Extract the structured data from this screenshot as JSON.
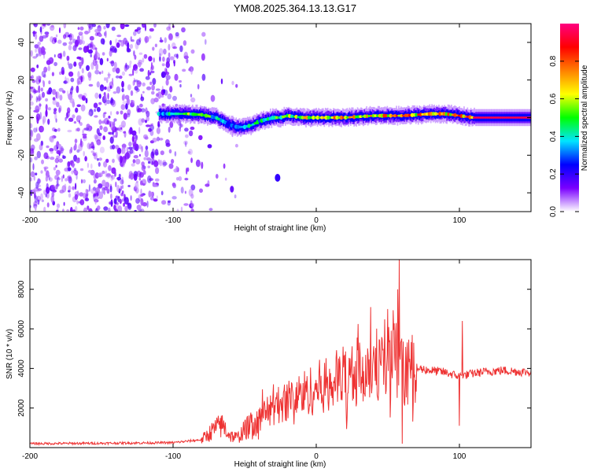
{
  "title": "YM08.2025.364.13.13.G17",
  "chart_data": [
    {
      "type": "heatmap",
      "xlabel": "Height of straight line (km)",
      "ylabel": "Frequency (Hz)",
      "xlim": [
        -200,
        150
      ],
      "ylim": [
        -50,
        50
      ],
      "x_ticks": [
        -200,
        -100,
        0,
        100
      ],
      "y_ticks": [
        -40,
        -20,
        0,
        20,
        40
      ],
      "colorbar": {
        "label": "Normalized spectral amplitude",
        "range": [
          0,
          1
        ],
        "ticks": [
          0.0,
          0.2,
          0.4,
          0.6,
          0.8
        ],
        "colormap": [
          "#ffffff",
          "#7a00ff",
          "#0000ff",
          "#00e5ff",
          "#00ff00",
          "#ffff00",
          "#ff8000",
          "#ff0000",
          "#ff0080"
        ]
      },
      "ridge": {
        "x": [
          -110,
          -100,
          -90,
          -80,
          -70,
          -60,
          -55,
          -50,
          -45,
          -40,
          -35,
          -30,
          -25,
          -20,
          -10,
          0,
          20,
          40,
          60,
          80,
          90,
          100,
          110,
          150
        ],
        "frequency": [
          2,
          2,
          2,
          1.5,
          0,
          -4,
          -5,
          -5,
          -4,
          -2,
          -1,
          0,
          0,
          1,
          0,
          0,
          0,
          1,
          1,
          2,
          2,
          1,
          0,
          0
        ],
        "amplitude": [
          0.35,
          0.45,
          0.55,
          0.55,
          0.45,
          0.35,
          0.35,
          0.35,
          0.4,
          0.45,
          0.5,
          0.55,
          0.6,
          0.6,
          0.62,
          0.65,
          0.7,
          0.7,
          0.72,
          0.75,
          0.75,
          0.8,
          0.95,
          0.95
        ]
      },
      "noise_region_x": [
        -200,
        -75
      ],
      "isolated_blob": {
        "x": -27,
        "frequency": -32,
        "amplitude": 0.2
      }
    },
    {
      "type": "line",
      "xlabel": "Height of straight line (km)",
      "ylabel": "SNR (10 * v/v)",
      "xlim": [
        -200,
        150
      ],
      "ylim": [
        0,
        9500
      ],
      "x_ticks": [
        -200,
        -100,
        0,
        100
      ],
      "y_ticks": [
        2000,
        4000,
        6000,
        8000
      ],
      "series_color": "#ee3333",
      "envelope": {
        "x": [
          -200,
          -150,
          -100,
          -80,
          -75,
          -70,
          -65,
          -60,
          -55,
          -50,
          -45,
          -40,
          -30,
          -20,
          -10,
          0,
          10,
          20,
          30,
          40,
          50,
          55,
          58,
          60,
          65,
          70,
          80,
          90,
          100,
          110,
          120,
          130,
          140,
          150
        ],
        "y": [
          200,
          220,
          250,
          400,
          700,
          1000,
          1100,
          600,
          500,
          900,
          1200,
          1500,
          2000,
          2400,
          2700,
          3000,
          3300,
          3600,
          3900,
          4200,
          4400,
          4500,
          4300,
          3800,
          3900,
          4000,
          3900,
          3800,
          3600,
          3750,
          3850,
          3900,
          3850,
          3800
        ]
      },
      "spikes": [
        {
          "x": 58,
          "y": 9500
        },
        {
          "x": 57,
          "y": 8000
        },
        {
          "x": 38,
          "y": 7100
        },
        {
          "x": 50,
          "y": 7000
        },
        {
          "x": 60,
          "y": 200
        },
        {
          "x": 102,
          "y": 6400
        },
        {
          "x": 100,
          "y": 1100
        },
        {
          "x": -67,
          "y": 1500
        },
        {
          "x": -30,
          "y": 3200
        }
      ]
    }
  ]
}
